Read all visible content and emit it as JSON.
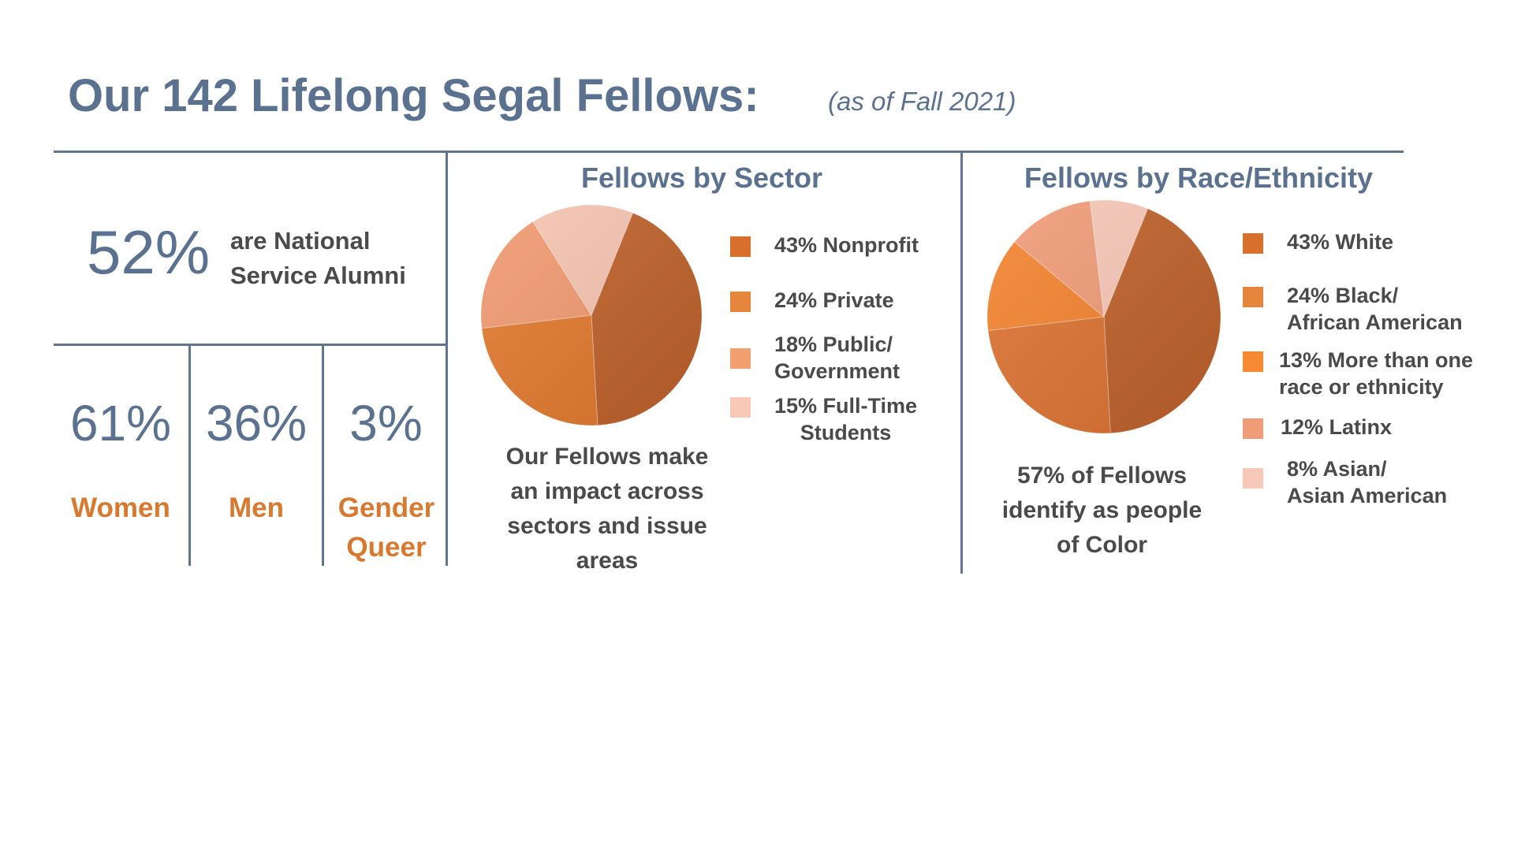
{
  "header": {
    "title": "Our 142 Lifelong Segal Fellows:",
    "subtitle": "(as of Fall 2021)"
  },
  "stats": {
    "national_service": {
      "pct": "52%",
      "text": "are National Service Alumni"
    },
    "gender": [
      {
        "pct": "61%",
        "label": "Women"
      },
      {
        "pct": "36%",
        "label": "Men"
      },
      {
        "pct": "3%",
        "label": "Gender Queer"
      }
    ]
  },
  "sector": {
    "title": "Fellows by Sector",
    "caption": "Our Fellows make an impact across sectors and issue areas",
    "legend": [
      "43% Nonprofit",
      "24% Private",
      "18% Public/\nGovernment",
      "15% Full-Time\nStudents"
    ]
  },
  "race": {
    "title": "Fellows by Race/Ethnicity",
    "caption": "57% of Fellows identify as people of Color",
    "legend": [
      "43% White",
      "24% Black/\nAfrican American",
      "13% More than one\nrace or ethnicity",
      "12% Latinx",
      "8% Asian/\nAsian American"
    ]
  },
  "chart_data": [
    {
      "type": "pie",
      "title": "Fellows by Sector",
      "categories": [
        "Nonprofit",
        "Private",
        "Public/Government",
        "Full-Time Students"
      ],
      "values": [
        43,
        24,
        18,
        15
      ],
      "colors": [
        "#c0622a",
        "#e27a2e",
        "#f19a70",
        "#f6c4b2"
      ]
    },
    {
      "type": "pie",
      "title": "Fellows by Race/Ethnicity",
      "categories": [
        "White",
        "Black/African American",
        "More than one race or ethnicity",
        "Latinx",
        "Asian/Asian American"
      ],
      "values": [
        43,
        24,
        13,
        12,
        8
      ],
      "colors": [
        "#c0622a",
        "#dd7332",
        "#f3832f",
        "#f19c78",
        "#f8c8b8"
      ]
    }
  ]
}
